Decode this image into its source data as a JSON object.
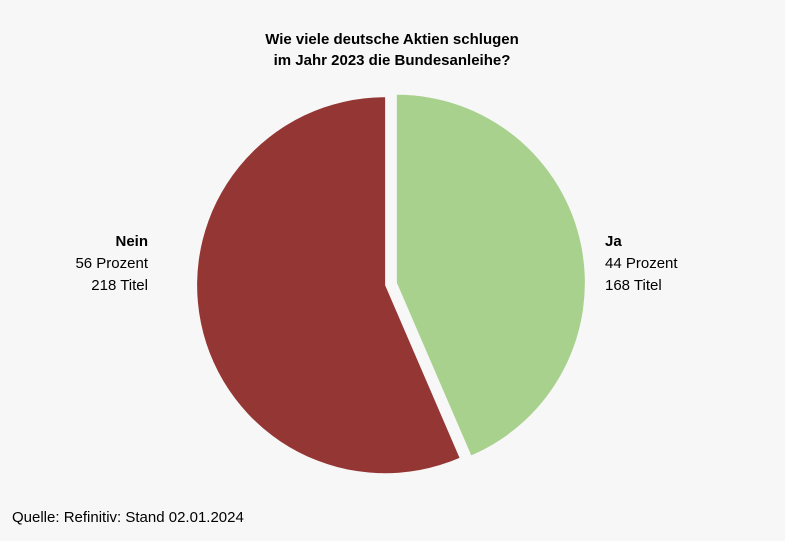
{
  "chart_data": {
    "type": "pie",
    "title": [
      "Wie viele deutsche Aktien schlugen",
      "im Jahr 2023 die Bundesanleihe?"
    ],
    "categories": [
      "Ja",
      "Nein"
    ],
    "values": [
      44,
      56
    ],
    "value_labels": [
      "44 Prozent",
      "56 Prozent"
    ],
    "counts": [
      168,
      218
    ],
    "count_labels": [
      "168 Titel",
      "218 Titel"
    ],
    "colors": [
      "#a9d18e",
      "#943634"
    ],
    "source": "Quelle: Refinitiv: Stand 02.01.2024"
  }
}
